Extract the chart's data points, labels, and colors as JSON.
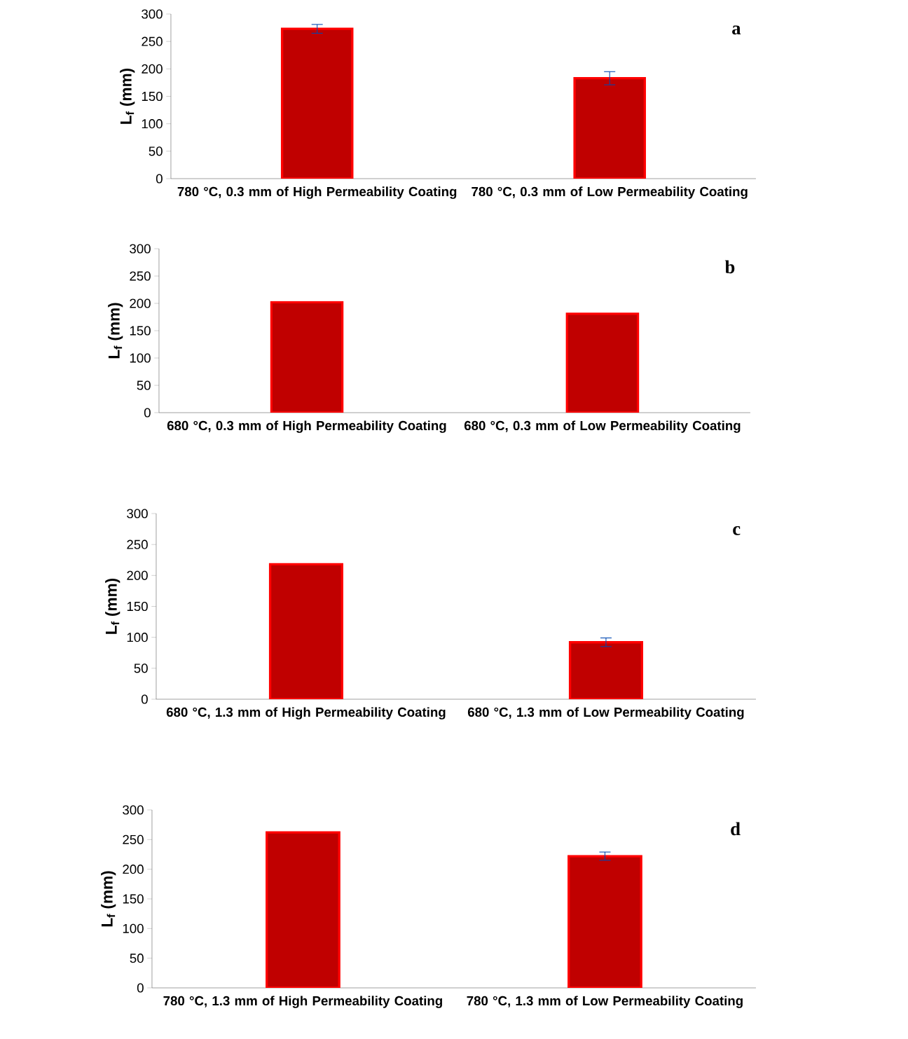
{
  "chart_data": [
    {
      "type": "bar",
      "categories": [
        "780 °C, 0.3 mm of High Permeability Coating",
        "780 °C, 0.3 mm of Low Permeability Coating"
      ],
      "values": [
        273,
        183
      ],
      "errors": [
        8,
        12
      ],
      "color": "#c00000",
      "ylabel": "L$_{f}$ (mm)",
      "ylim": [
        0,
        300
      ],
      "yticks": [
        0,
        50,
        100,
        150,
        200,
        250,
        300
      ],
      "annotations": [
        "a"
      ]
    },
    {
      "type": "bar",
      "categories": [
        "680 °C, 0.3 mm of High Permeability Coating",
        "680 °C, 0.3 mm of Low Permeability Coating"
      ],
      "values": [
        202,
        181
      ],
      "color": "#c00000",
      "ylabel": "L$_{f}$ (mm)",
      "ylim": [
        0,
        300
      ],
      "yticks": [
        0,
        50,
        100,
        150,
        200,
        250,
        300
      ],
      "annotations": [
        "b"
      ]
    },
    {
      "type": "bar",
      "categories": [
        "680 °C, 1.3 mm of High Permeability Coating",
        "680 °C, 1.3 mm of Low Permeability Coating"
      ],
      "values": [
        218,
        92
      ],
      "errors": [
        null,
        7
      ],
      "color": "#c00000",
      "ylabel": "L$_{f}$ (mm)",
      "ylim": [
        0,
        300
      ],
      "yticks": [
        0,
        50,
        100,
        150,
        200,
        250,
        300
      ],
      "annotations": [
        "c"
      ]
    },
    {
      "type": "bar",
      "categories": [
        "780 °C, 1.3 mm of High Permeability Coating",
        "780 °C, 1.3 mm of Low Permeability Coating"
      ],
      "values": [
        262,
        222
      ],
      "errors": [
        null,
        7
      ],
      "color": "#c00000",
      "ylabel": "L$_{f}$ (mm)",
      "ylim": [
        0,
        300
      ],
      "yticks": [
        0,
        50,
        100,
        150,
        200,
        250,
        300
      ],
      "annotations": [
        "d"
      ]
    }
  ]
}
